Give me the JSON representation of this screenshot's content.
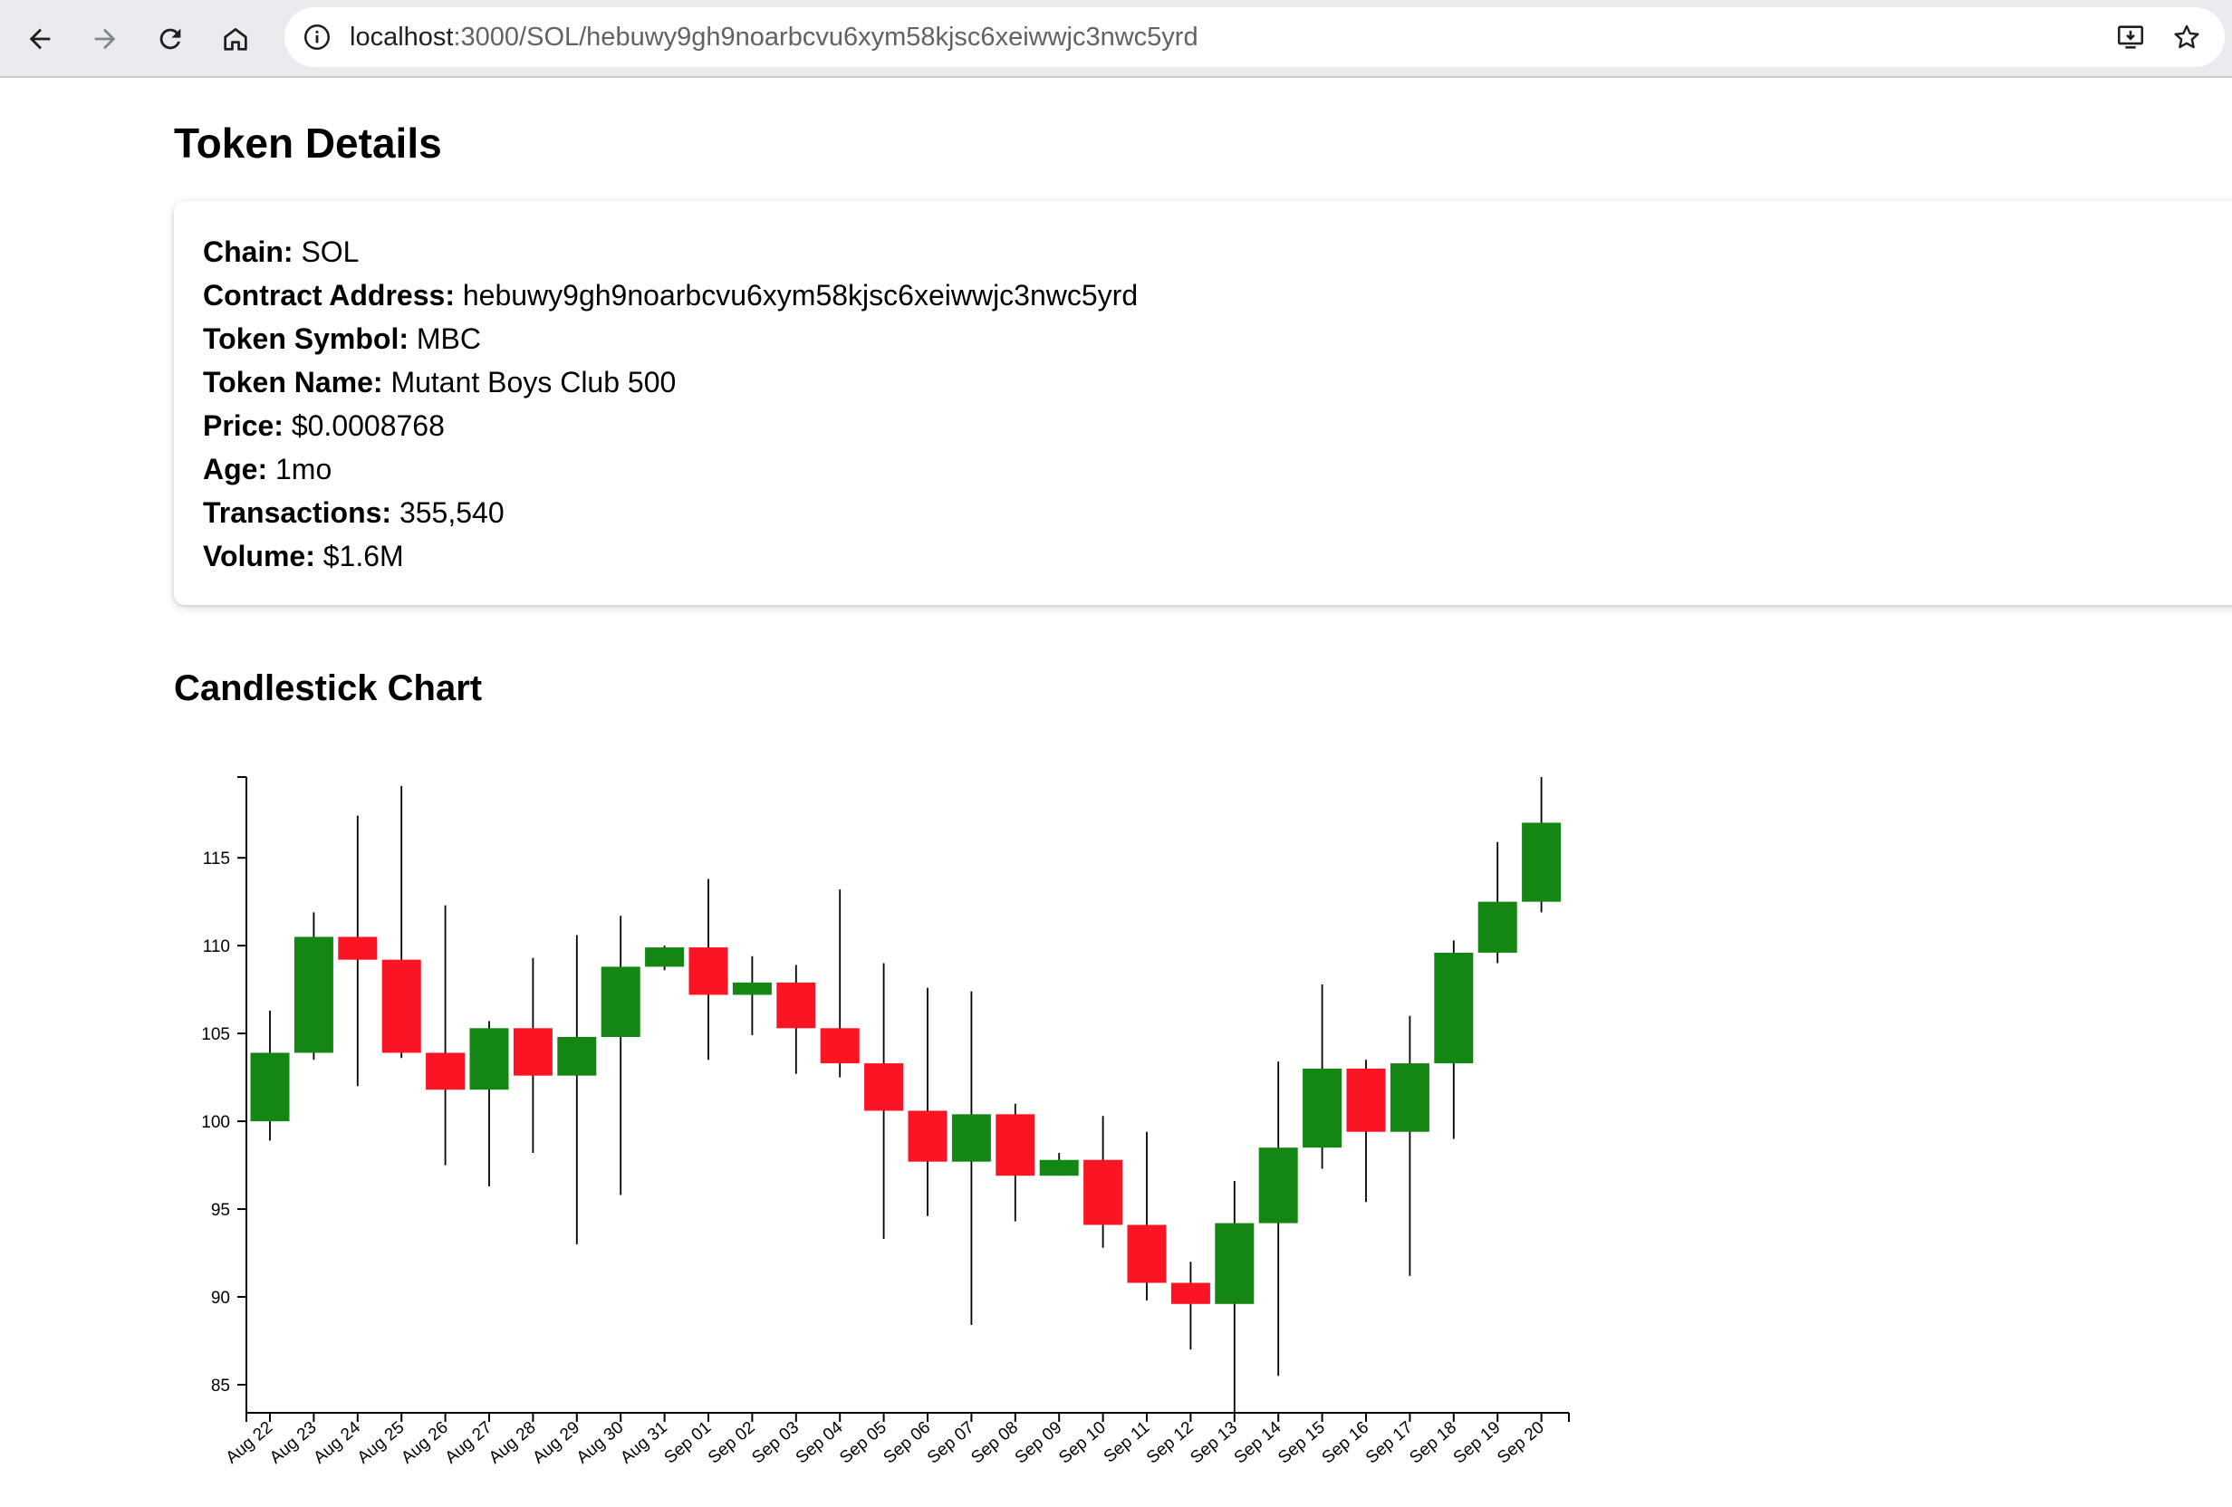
{
  "browser": {
    "url_host": "localhost",
    "url_path": ":3000/SOL/hebuwy9gh9noarbcvu6xym58kjsc6xeiwwjc3nwc5yrd",
    "icons": {
      "back": "arrow-left-icon",
      "forward": "arrow-right-icon",
      "reload": "reload-icon",
      "home": "home-icon",
      "site_info": "info-icon",
      "install": "install-app-icon",
      "bookmark": "star-icon"
    }
  },
  "page": {
    "title": "Token Details",
    "chart_section_title": "Candlestick Chart"
  },
  "details": [
    {
      "label": "Chain:",
      "value": "SOL"
    },
    {
      "label": "Contract Address:",
      "value": "hebuwy9gh9noarbcvu6xym58kjsc6xeiwwjc3nwc5yrd"
    },
    {
      "label": "Token Symbol:",
      "value": "MBC"
    },
    {
      "label": "Token Name:",
      "value": "Mutant Boys Club 500"
    },
    {
      "label": "Price:",
      "value": "$0.0008768"
    },
    {
      "label": "Age:",
      "value": "1mo"
    },
    {
      "label": "Transactions:",
      "value": "355,540"
    },
    {
      "label": "Volume:",
      "value": "$1.6M"
    }
  ],
  "colors": {
    "up": "#138613",
    "down": "#fa1424",
    "wick": "#000000"
  },
  "chart_data": {
    "type": "candlestick",
    "title": "",
    "xlabel": "",
    "ylabel": "",
    "ylim": [
      83.4,
      119.6
    ],
    "yticks": [
      85,
      90,
      95,
      100,
      105,
      110,
      115
    ],
    "grid": false,
    "candles": [
      {
        "date": "Aug 22",
        "open": 100.0,
        "high": 106.3,
        "low": 98.9,
        "close": 103.9
      },
      {
        "date": "Aug 23",
        "open": 103.9,
        "high": 111.9,
        "low": 103.5,
        "close": 110.5
      },
      {
        "date": "Aug 24",
        "open": 110.5,
        "high": 117.4,
        "low": 102.0,
        "close": 109.2
      },
      {
        "date": "Aug 25",
        "open": 109.2,
        "high": 119.1,
        "low": 103.6,
        "close": 103.9
      },
      {
        "date": "Aug 26",
        "open": 103.9,
        "high": 112.3,
        "low": 97.5,
        "close": 101.8
      },
      {
        "date": "Aug 27",
        "open": 101.8,
        "high": 105.7,
        "low": 96.3,
        "close": 105.3
      },
      {
        "date": "Aug 28",
        "open": 105.3,
        "high": 109.3,
        "low": 98.2,
        "close": 102.6
      },
      {
        "date": "Aug 29",
        "open": 102.6,
        "high": 110.6,
        "low": 93.0,
        "close": 104.8
      },
      {
        "date": "Aug 30",
        "open": 104.8,
        "high": 111.7,
        "low": 95.8,
        "close": 108.8
      },
      {
        "date": "Aug 31",
        "open": 108.8,
        "high": 110.0,
        "low": 108.6,
        "close": 109.9
      },
      {
        "date": "Sep 01",
        "open": 109.9,
        "high": 113.8,
        "low": 103.5,
        "close": 107.2
      },
      {
        "date": "Sep 02",
        "open": 107.2,
        "high": 109.4,
        "low": 104.9,
        "close": 107.9
      },
      {
        "date": "Sep 03",
        "open": 107.9,
        "high": 108.9,
        "low": 102.7,
        "close": 105.3
      },
      {
        "date": "Sep 04",
        "open": 105.3,
        "high": 113.2,
        "low": 102.5,
        "close": 103.3
      },
      {
        "date": "Sep 05",
        "open": 103.3,
        "high": 109.0,
        "low": 93.3,
        "close": 100.6
      },
      {
        "date": "Sep 06",
        "open": 100.6,
        "high": 107.6,
        "low": 94.6,
        "close": 97.7
      },
      {
        "date": "Sep 07",
        "open": 97.7,
        "high": 107.4,
        "low": 88.4,
        "close": 100.4
      },
      {
        "date": "Sep 08",
        "open": 100.4,
        "high": 101.0,
        "low": 94.3,
        "close": 96.9
      },
      {
        "date": "Sep 09",
        "open": 96.9,
        "high": 98.2,
        "low": 96.9,
        "close": 97.8
      },
      {
        "date": "Sep 10",
        "open": 97.8,
        "high": 100.3,
        "low": 92.8,
        "close": 94.1
      },
      {
        "date": "Sep 11",
        "open": 94.1,
        "high": 99.4,
        "low": 89.8,
        "close": 90.8
      },
      {
        "date": "Sep 12",
        "open": 90.8,
        "high": 92.0,
        "low": 87.0,
        "close": 89.6
      },
      {
        "date": "Sep 13",
        "open": 89.6,
        "high": 96.6,
        "low": 83.4,
        "close": 94.2
      },
      {
        "date": "Sep 14",
        "open": 94.2,
        "high": 103.4,
        "low": 85.5,
        "close": 98.5
      },
      {
        "date": "Sep 15",
        "open": 98.5,
        "high": 107.8,
        "low": 97.3,
        "close": 103.0
      },
      {
        "date": "Sep 16",
        "open": 103.0,
        "high": 103.5,
        "low": 95.4,
        "close": 99.4
      },
      {
        "date": "Sep 17",
        "open": 99.4,
        "high": 106.0,
        "low": 91.2,
        "close": 103.3
      },
      {
        "date": "Sep 18",
        "open": 103.3,
        "high": 110.3,
        "low": 99.0,
        "close": 109.6
      },
      {
        "date": "Sep 19",
        "open": 109.6,
        "high": 115.9,
        "low": 109.0,
        "close": 112.5
      },
      {
        "date": "Sep 20",
        "open": 112.5,
        "high": 119.6,
        "low": 111.9,
        "close": 117.0
      }
    ]
  }
}
